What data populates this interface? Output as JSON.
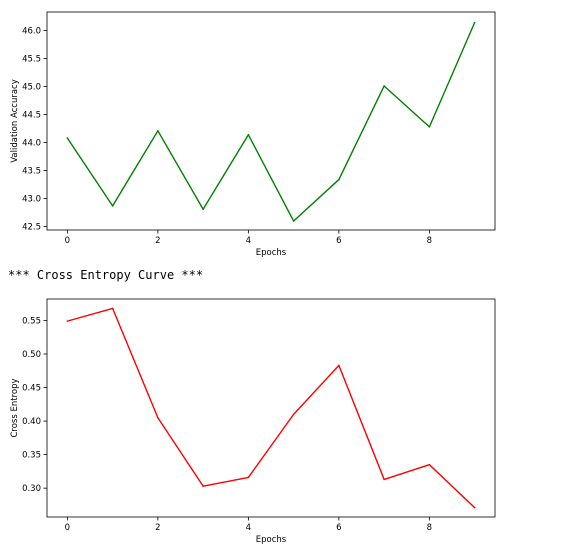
{
  "heading": "*** Cross Entropy Curve ***",
  "chart_data": [
    {
      "type": "line",
      "title": "",
      "xlabel": "Epochs",
      "ylabel": "Validation Accuracy",
      "x": [
        0,
        1,
        2,
        3,
        4,
        5,
        6,
        7,
        8,
        9
      ],
      "xticks": [
        0,
        2,
        4,
        6,
        8
      ],
      "yticks": [
        42.5,
        43.0,
        43.5,
        44.0,
        44.5,
        45.0,
        45.5,
        46.0
      ],
      "ytick_labels": [
        "42.5",
        "43.0",
        "43.5",
        "44.0",
        "44.5",
        "45.0",
        "45.5",
        "46.0"
      ],
      "xlim": [
        -0.45,
        9.45
      ],
      "ylim": [
        42.44,
        46.33
      ],
      "grid": false,
      "series": [
        {
          "color": "#008000",
          "values": [
            44.08,
            42.87,
            44.21,
            42.81,
            44.14,
            42.6,
            43.34,
            45.01,
            44.28,
            46.14
          ]
        }
      ]
    },
    {
      "type": "line",
      "title": "",
      "xlabel": "Epochs",
      "ylabel": "Cross Entropy",
      "x": [
        0,
        1,
        2,
        3,
        4,
        5,
        6,
        7,
        8,
        9
      ],
      "xticks": [
        0,
        2,
        4,
        6,
        8
      ],
      "yticks": [
        0.3,
        0.35,
        0.4,
        0.45,
        0.5,
        0.55
      ],
      "ytick_labels": [
        "0.30",
        "0.35",
        "0.40",
        "0.45",
        "0.50",
        "0.55"
      ],
      "xlim": [
        -0.45,
        9.45
      ],
      "ylim": [
        0.257,
        0.582
      ],
      "grid": false,
      "series": [
        {
          "color": "#ff0000",
          "values": [
            0.549,
            0.568,
            0.405,
            0.303,
            0.316,
            0.41,
            0.483,
            0.313,
            0.335,
            0.271
          ]
        }
      ]
    }
  ]
}
